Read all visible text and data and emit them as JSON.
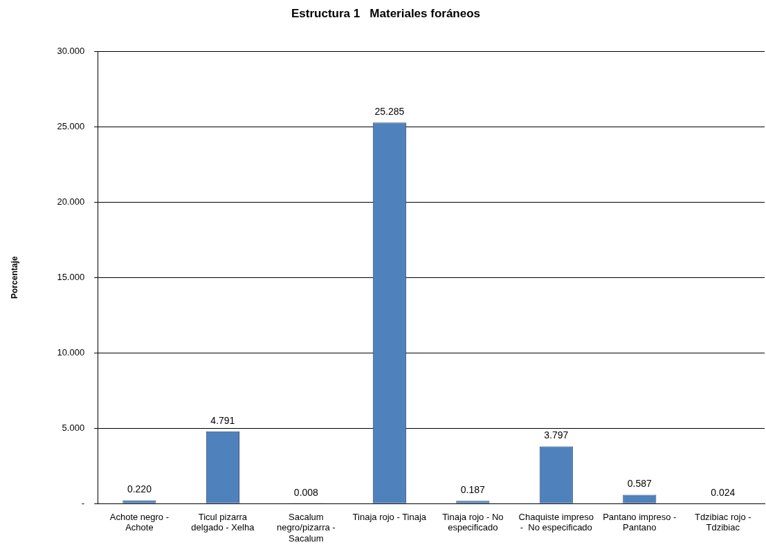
{
  "chart_data": {
    "type": "bar",
    "title": "Estructura 1   Materiales foráneos",
    "ylabel": "Porcentaje",
    "categories": [
      "Achote negro - Achote",
      "Ticul pizarra delgado - Xelha",
      "Sacalum negro/pizarra - Sacalum",
      "Tinaja rojo - Tinaja",
      "Tinaja rojo - No especificado",
      "Chaquiste impreso -  No especificado",
      "Pantano impreso - Pantano",
      "Tdzibiac rojo - Tdzibiac"
    ],
    "values": [
      0.22,
      4.791,
      0.008,
      25.285,
      0.187,
      3.797,
      0.587,
      0.024
    ],
    "value_labels": [
      "0.220",
      "4.791",
      "0.008",
      "25.285",
      "0.187",
      "3.797",
      "0.587",
      "0.024"
    ],
    "color": "#4f81bd",
    "ylim": [
      0,
      30
    ],
    "yticks": [
      {
        "value": 0,
        "label": "-"
      },
      {
        "value": 5,
        "label": "5.000"
      },
      {
        "value": 10,
        "label": "10.000"
      },
      {
        "value": 15,
        "label": "15.000"
      },
      {
        "value": 20,
        "label": "20.000"
      },
      {
        "value": 25,
        "label": "25.000"
      },
      {
        "value": 30,
        "label": "30.000"
      }
    ],
    "grid": "y",
    "legend": false
  }
}
